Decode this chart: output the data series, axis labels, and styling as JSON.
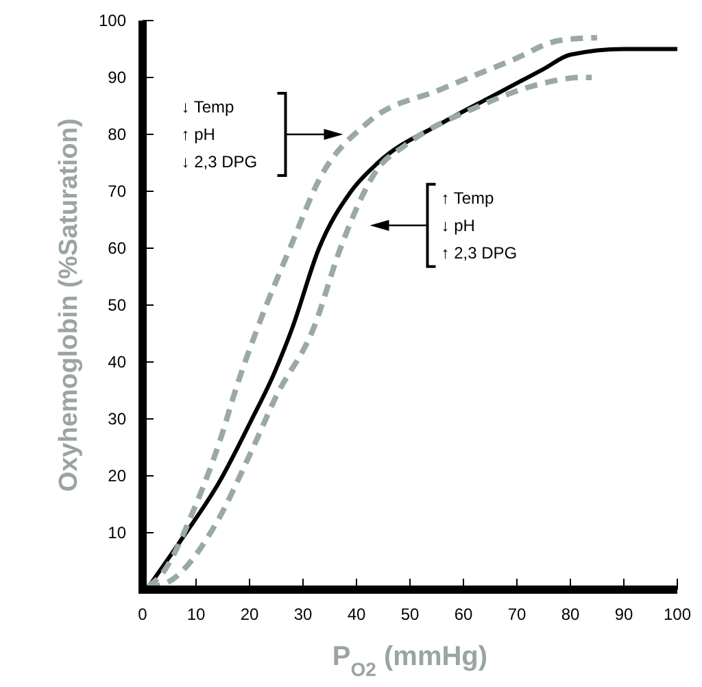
{
  "chart_data": {
    "type": "line",
    "xlabel": "P$_{O2}$ (mmHg)",
    "ylabel": "Oxyhemoglobin (%Saturation)",
    "xlim": [
      0,
      100
    ],
    "ylim": [
      0,
      100
    ],
    "xticks": [
      0,
      10,
      20,
      30,
      40,
      50,
      60,
      70,
      80,
      90,
      100
    ],
    "yticks": [
      10,
      20,
      30,
      40,
      50,
      60,
      70,
      80,
      90,
      100
    ],
    "grid": false,
    "marker": "none",
    "series": [
      {
        "color": "#000000",
        "line_style": "solid",
        "x": [
          1.5,
          7.4,
          14.4,
          20.3,
          24.6,
          28,
          33,
          39,
          44,
          56,
          66,
          75,
          80,
          90,
          100
        ],
        "values": [
          1,
          9,
          19,
          29.7,
          38,
          46,
          60,
          70,
          75,
          82,
          87,
          91.5,
          94,
          95,
          95
        ]
      },
      {
        "color": "#9aa9a5",
        "line_style": "dashed",
        "x": [
          1,
          3.3,
          10,
          14.4,
          17.7,
          21.5,
          28,
          33,
          42,
          56,
          69,
          78,
          85
        ],
        "values": [
          0.5,
          2.4,
          15,
          26,
          36,
          46,
          61,
          72,
          82,
          88,
          93,
          96.5,
          97
        ]
      },
      {
        "color": "#9aa9a5",
        "line_style": "dashed",
        "x": [
          1,
          4,
          13.6,
          20,
          25,
          32,
          37,
          44,
          49,
          63,
          75,
          82,
          84
        ],
        "values": [
          0.5,
          1,
          11.4,
          23.6,
          34,
          46,
          60,
          74,
          78,
          85,
          89,
          90,
          90
        ]
      }
    ],
    "annotations": [
      "↓ Temp\n↑ pH\n↓ 2,3 DPG",
      "↑ Temp\n↓ pH\n↑ 2,3 DPG"
    ]
  }
}
